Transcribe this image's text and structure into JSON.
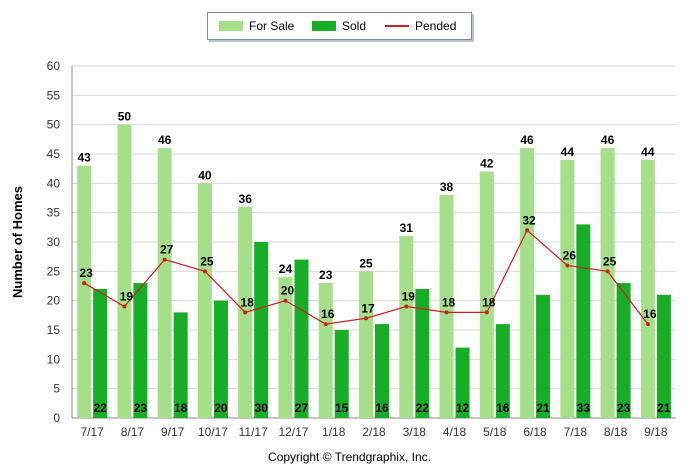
{
  "legend": {
    "for_sale": "For Sale",
    "sold": "Sold",
    "pended": "Pended"
  },
  "footer": "Copyright © Trendgraphix, Inc.",
  "colors": {
    "for_sale": "#a6df8a",
    "sold": "#17ad26",
    "pended": "#cc1f1f",
    "grid": "#d9d9d9"
  },
  "chart_data": {
    "type": "bar",
    "title": "",
    "xlabel": "",
    "ylabel": "Number of Homes",
    "ylim": [
      0,
      60
    ],
    "yticks": [
      0,
      5,
      10,
      15,
      20,
      25,
      30,
      35,
      40,
      45,
      50,
      55,
      60
    ],
    "grid": true,
    "legend_position": "top-center",
    "categories": [
      "7/17",
      "8/17",
      "9/17",
      "10/17",
      "11/17",
      "12/17",
      "1/18",
      "2/18",
      "3/18",
      "4/18",
      "5/18",
      "6/18",
      "7/18",
      "8/18",
      "9/18"
    ],
    "series": [
      {
        "name": "For Sale",
        "kind": "bar",
        "values": [
          43,
          50,
          46,
          40,
          36,
          24,
          23,
          25,
          31,
          38,
          42,
          46,
          44,
          46,
          44
        ]
      },
      {
        "name": "Sold",
        "kind": "bar",
        "values": [
          22,
          23,
          18,
          20,
          30,
          27,
          15,
          16,
          22,
          12,
          16,
          21,
          33,
          23,
          21
        ]
      },
      {
        "name": "Pended",
        "kind": "line",
        "values": [
          23,
          19,
          27,
          25,
          18,
          20,
          16,
          17,
          19,
          18,
          18,
          32,
          26,
          25,
          16
        ]
      }
    ]
  }
}
